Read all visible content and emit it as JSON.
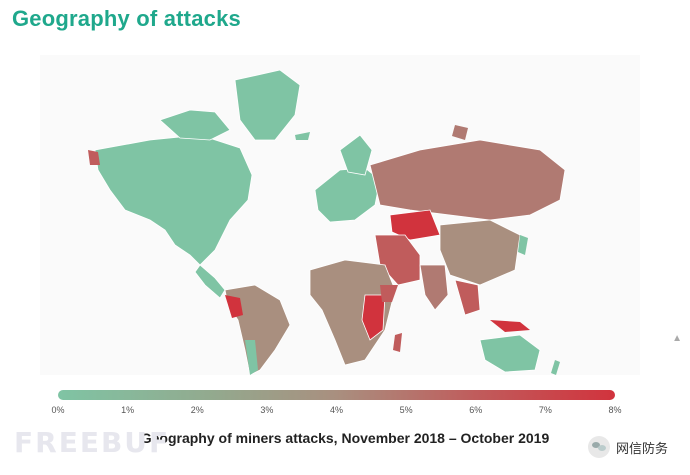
{
  "title": "Geography of attacks",
  "caption": "Geography of miners attacks, November 2018 – October 2019",
  "scale": {
    "ticks": [
      "0%",
      "1%",
      "2%",
      "3%",
      "4%",
      "5%",
      "6%",
      "7%",
      "8%"
    ]
  },
  "watermark": {
    "left": "FREEBUF",
    "right": "网信防务"
  },
  "colors": {
    "title": "#1fa88c",
    "low": "#7fc4a4",
    "mid": "#a98f7f",
    "high": "#d1333d"
  }
}
